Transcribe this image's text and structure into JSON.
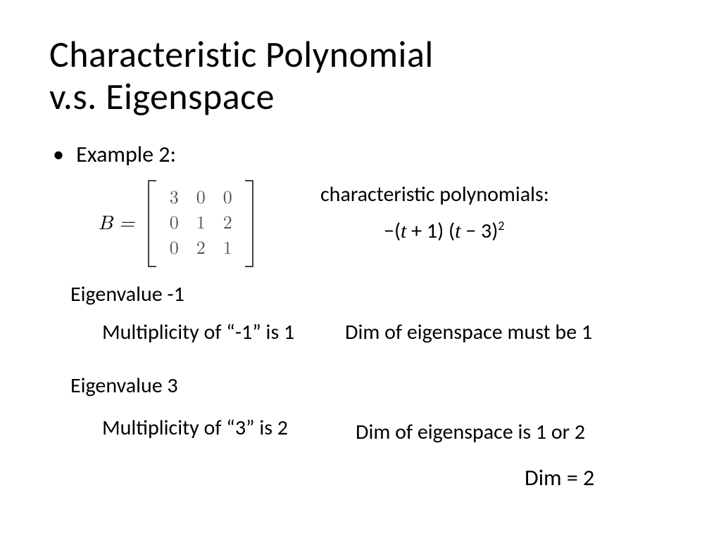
{
  "title": {
    "line1": "Characteristic Polynomial",
    "line2": "v.s. Eigenspace",
    "fontsize": 52,
    "color": "#000000"
  },
  "bullet": {
    "label": "Example 2:",
    "fontsize": 32
  },
  "matrix": {
    "symbol": "B =",
    "rows": [
      [
        3,
        0,
        0
      ],
      [
        0,
        1,
        2
      ],
      [
        0,
        2,
        1
      ]
    ],
    "entry_color": "#555555",
    "bracket_color": "#444444"
  },
  "charpoly": {
    "label": "characteristic polynomials:",
    "expr_prefix": "−(",
    "factor1_var": "t",
    "factor1_op": " + ",
    "factor1_const": "1",
    "between": ") (",
    "factor2_var": "t",
    "factor2_op": " − ",
    "factor2_const": "3",
    "close": ")",
    "exponent": "2"
  },
  "eigen1": {
    "heading": "Eigenvalue -1",
    "multiplicity": "Multiplicity of “-1” is 1",
    "dimension": "Dim of eigenspace must be 1"
  },
  "eigen3": {
    "heading": "Eigenvalue 3",
    "multiplicity": "Multiplicity of “3” is 2",
    "dimension": "Dim of eigenspace is 1 or 2"
  },
  "result": {
    "label": "Dim = 2"
  },
  "background_color": "#ffffff"
}
